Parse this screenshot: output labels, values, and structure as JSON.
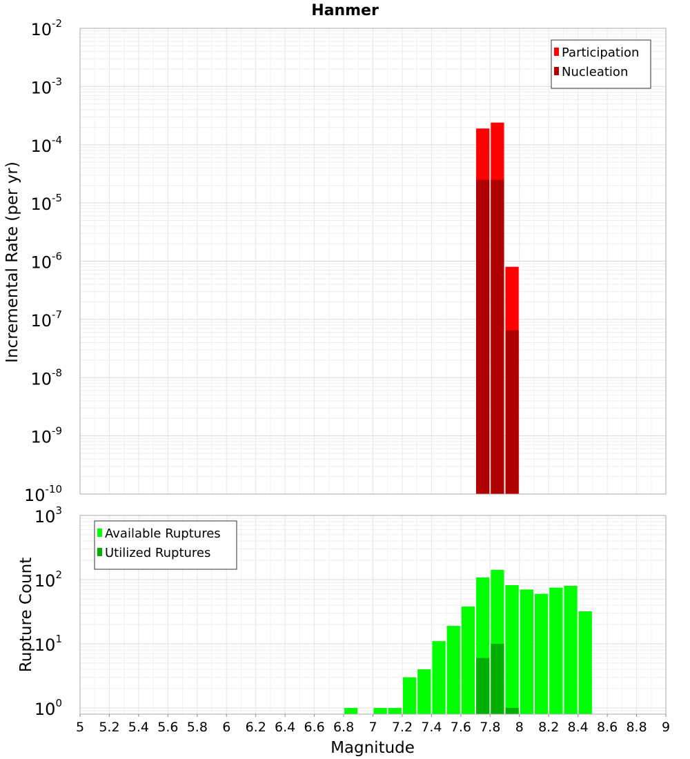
{
  "chart_data": [
    {
      "type": "bar",
      "title": "Hanmer",
      "ylabel": "Incremental Rate (per yr)",
      "xlabel": "",
      "x_range": [
        5,
        9
      ],
      "y_scale": "log",
      "y_range": [
        1e-10,
        0.01
      ],
      "y_ticks": [
        {
          "base": "10",
          "exp": "-2",
          "value": 0.01
        },
        {
          "base": "10",
          "exp": "-3",
          "value": 0.001
        },
        {
          "base": "10",
          "exp": "-4",
          "value": 0.0001
        },
        {
          "base": "10",
          "exp": "-5",
          "value": 1e-05
        },
        {
          "base": "10",
          "exp": "-6",
          "value": 1e-06
        },
        {
          "base": "10",
          "exp": "-7",
          "value": 1e-07
        },
        {
          "base": "10",
          "exp": "-8",
          "value": 1e-08
        },
        {
          "base": "10",
          "exp": "-9",
          "value": 1e-09
        },
        {
          "base": "10",
          "exp": "-10",
          "value": 1e-10
        }
      ],
      "grid": true,
      "legend_position": "top-right",
      "bin_width": 0.1,
      "series": [
        {
          "name": "Participation",
          "color": "#ff0000",
          "x": [
            7.75,
            7.85,
            7.95
          ],
          "values": [
            0.00019,
            0.00024,
            8e-07
          ]
        },
        {
          "name": "Nucleation",
          "color": "#b00000",
          "x": [
            7.75,
            7.85,
            7.95
          ],
          "values": [
            2.5e-05,
            2.5e-05,
            6.5e-08
          ]
        }
      ]
    },
    {
      "type": "bar",
      "title": "",
      "ylabel": "Rupture Count",
      "xlabel": "Magnitude",
      "x_range": [
        5,
        9
      ],
      "x_ticks": [
        "5",
        "5.2",
        "5.4",
        "5.6",
        "5.8",
        "6",
        "6.2",
        "6.4",
        "6.6",
        "6.8",
        "7",
        "7.2",
        "7.4",
        "7.6",
        "7.8",
        "8",
        "8.2",
        "8.4",
        "8.6",
        "8.8",
        "9"
      ],
      "y_scale": "log",
      "y_range": [
        0.8,
        1000
      ],
      "y_ticks": [
        {
          "base": "10",
          "exp": "3",
          "value": 1000
        },
        {
          "base": "10",
          "exp": "2",
          "value": 100
        },
        {
          "base": "10",
          "exp": "1",
          "value": 10
        },
        {
          "base": "10",
          "exp": "0",
          "value": 1
        }
      ],
      "grid": true,
      "legend_position": "top-left",
      "bin_width": 0.1,
      "series": [
        {
          "name": "Available Ruptures",
          "color": "#00ff00",
          "x": [
            6.85,
            7.05,
            7.15,
            7.25,
            7.35,
            7.45,
            7.55,
            7.65,
            7.75,
            7.85,
            7.95,
            8.05,
            8.15,
            8.25,
            8.35,
            8.45
          ],
          "values": [
            1,
            1,
            1,
            3,
            4,
            11,
            19,
            38,
            108,
            142,
            82,
            70,
            60,
            75,
            80,
            32
          ]
        },
        {
          "name": "Utilized Ruptures",
          "color": "#00b000",
          "x": [
            7.75,
            7.85,
            7.95
          ],
          "values": [
            6,
            10,
            1
          ]
        }
      ]
    }
  ]
}
